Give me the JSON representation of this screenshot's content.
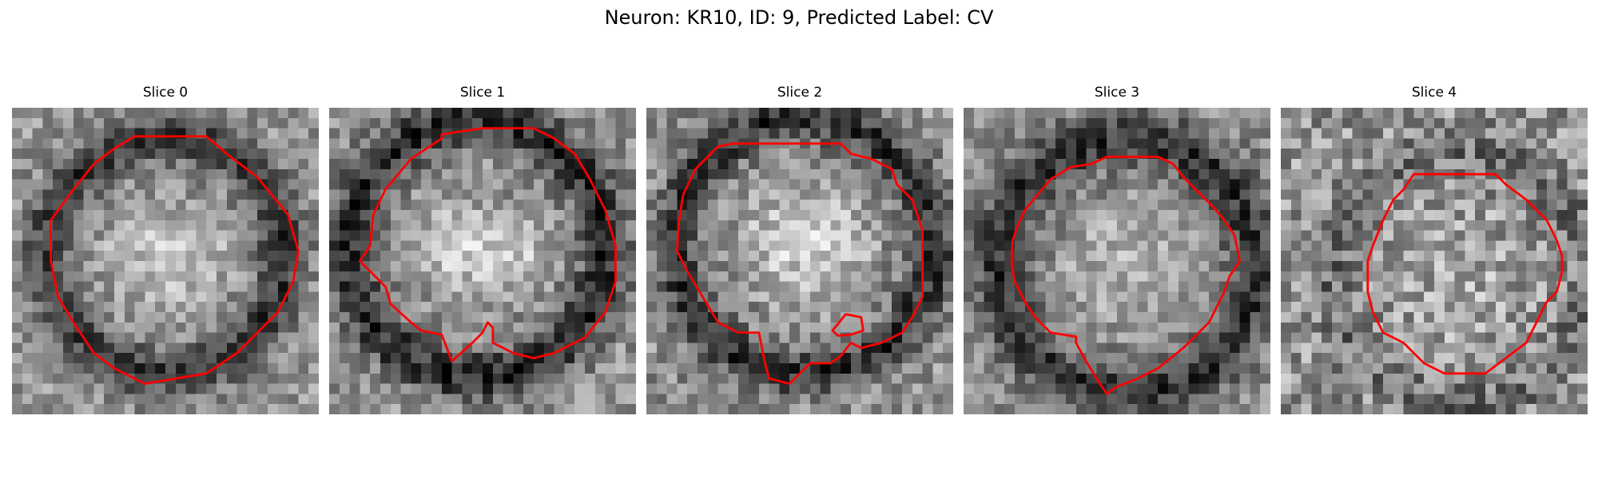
{
  "figure": {
    "title": "Neuron: KR10, ID: 9, Predicted Label: CV"
  },
  "panels": [
    {
      "title": "Slice 0"
    },
    {
      "title": "Slice 1"
    },
    {
      "title": "Slice 2"
    },
    {
      "title": "Slice 3"
    },
    {
      "title": "Slice 4"
    }
  ],
  "colors": {
    "contour": "#ff0000",
    "background": "#ffffff",
    "image_colormap": "grayscale"
  }
}
